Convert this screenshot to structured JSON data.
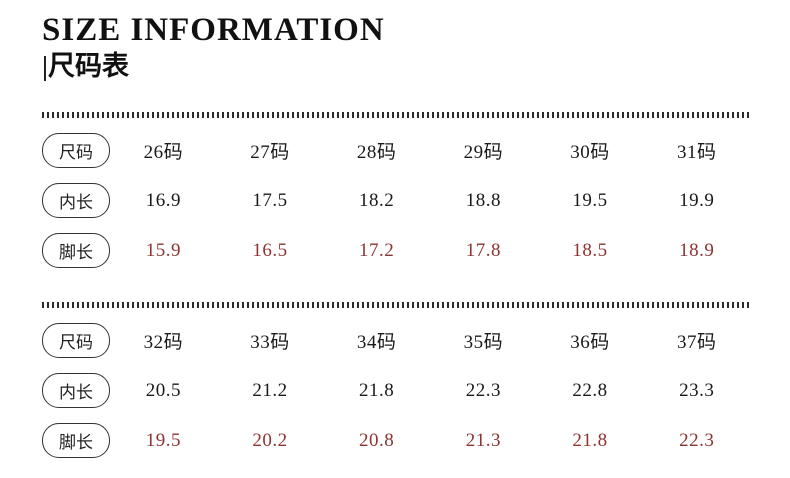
{
  "header": {
    "title": "SIZE INFORMATION",
    "subtitle": "|尺码表"
  },
  "colors": {
    "text": "#1a1a1a",
    "accent_red": "#8e3232"
  },
  "chart_data": {
    "type": "table",
    "title": "SIZE INFORMATION 尺码表",
    "tables": [
      {
        "rows": [
          {
            "label": "尺码",
            "values": [
              "26码",
              "27码",
              "28码",
              "29码",
              "30码",
              "31码"
            ],
            "highlight": false
          },
          {
            "label": "内长",
            "values": [
              "16.9",
              "17.5",
              "18.2",
              "18.8",
              "19.5",
              "19.9"
            ],
            "highlight": false
          },
          {
            "label": "脚长",
            "values": [
              "15.9",
              "16.5",
              "17.2",
              "17.8",
              "18.5",
              "18.9"
            ],
            "highlight": true
          }
        ]
      },
      {
        "rows": [
          {
            "label": "尺码",
            "values": [
              "32码",
              "33码",
              "34码",
              "35码",
              "36码",
              "37码"
            ],
            "highlight": false
          },
          {
            "label": "内长",
            "values": [
              "20.5",
              "21.2",
              "21.8",
              "22.3",
              "22.8",
              "23.3"
            ],
            "highlight": false
          },
          {
            "label": "脚长",
            "values": [
              "19.5",
              "20.2",
              "20.8",
              "21.3",
              "21.8",
              "22.3"
            ],
            "highlight": true
          }
        ]
      }
    ]
  },
  "tables": [
    {
      "rows": [
        {
          "label": "尺码",
          "values": [
            "26码",
            "27码",
            "28码",
            "29码",
            "30码",
            "31码"
          ]
        },
        {
          "label": "内长",
          "values": [
            "16.9",
            "17.5",
            "18.2",
            "18.8",
            "19.5",
            "19.9"
          ]
        },
        {
          "label": "脚长",
          "values": [
            "15.9",
            "16.5",
            "17.2",
            "17.8",
            "18.5",
            "18.9"
          ]
        }
      ]
    },
    {
      "rows": [
        {
          "label": "尺码",
          "values": [
            "32码",
            "33码",
            "34码",
            "35码",
            "36码",
            "37码"
          ]
        },
        {
          "label": "内长",
          "values": [
            "20.5",
            "21.2",
            "21.8",
            "22.3",
            "22.8",
            "23.3"
          ]
        },
        {
          "label": "脚长",
          "values": [
            "19.5",
            "20.2",
            "20.8",
            "21.3",
            "21.8",
            "22.3"
          ]
        }
      ]
    }
  ]
}
